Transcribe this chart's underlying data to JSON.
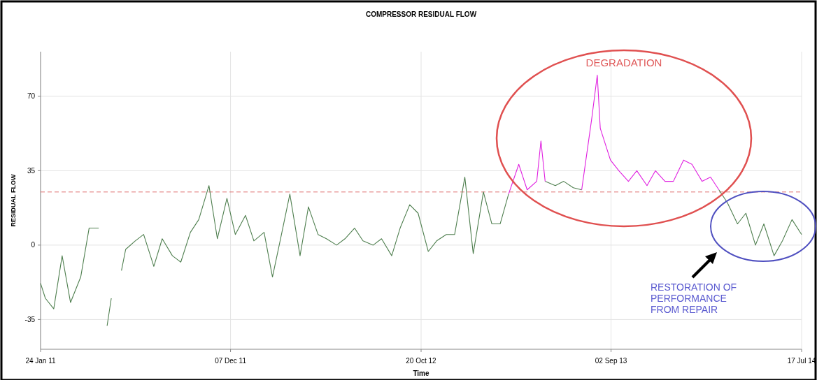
{
  "chart_data": {
    "type": "line",
    "title": "COMPRESSOR RESIDUAL FLOW",
    "xlabel": "Time",
    "ylabel": "RESIDUAL FLOW",
    "xlim": [
      "2011-01-24",
      "2014-07-17"
    ],
    "xticks": [
      {
        "value": "2011-01-24",
        "label": "24 Jan 11"
      },
      {
        "value": "2011-12-07",
        "label": "07 Dec 11"
      },
      {
        "value": "2012-10-20",
        "label": "20 Oct 12"
      },
      {
        "value": "2013-09-02",
        "label": "02 Sep 13"
      },
      {
        "value": "2014-07-17",
        "label": "17 Jul 14"
      }
    ],
    "ylim": [
      -49,
      91
    ],
    "yticks": [
      -35,
      0,
      35,
      70
    ],
    "grid": true,
    "line_style": "solid",
    "ref_lines": [
      {
        "axis": "y",
        "value": 25,
        "color": "#e07070",
        "line_style": "dashed"
      }
    ],
    "annotations": [
      "DEGRADATION",
      "RESTORATION OF PERFORMANCE FROM REPAIR"
    ],
    "series": [
      {
        "color": "#4f7f4f",
        "x": [
          "2011-01-24",
          "2011-02-01",
          "2011-02-15",
          "2011-03-01",
          "2011-03-15",
          "2011-04-01",
          "2011-04-15",
          "2011-05-01",
          "2011-05-08",
          "2011-05-15",
          "2011-05-22",
          "2011-05-29",
          "2011-06-08",
          "2011-06-15",
          "2011-07-01",
          "2011-07-15",
          "2011-08-01",
          "2011-08-15",
          "2011-09-01",
          "2011-09-15",
          "2011-10-01",
          "2011-10-15",
          "2011-11-01",
          "2011-11-15",
          "2011-12-01",
          "2011-12-15",
          "2012-01-01",
          "2012-01-15",
          "2012-02-01",
          "2012-02-15",
          "2012-03-01",
          "2012-03-15",
          "2012-04-01",
          "2012-04-15",
          "2012-05-01",
          "2012-05-15",
          "2012-06-01",
          "2012-06-15",
          "2012-07-01",
          "2012-07-15",
          "2012-08-01",
          "2012-08-15",
          "2012-09-01",
          "2012-09-15",
          "2012-10-01",
          "2012-10-15",
          "2012-11-01",
          "2012-11-15",
          "2012-12-01",
          "2012-12-15",
          "2013-01-01",
          "2013-01-15",
          "2013-02-01",
          "2013-02-15",
          "2013-03-01",
          "2013-03-15",
          "2013-04-01",
          "2013-05-15",
          "2013-06-01",
          "2013-06-15",
          "2013-07-01",
          "2013-07-15",
          "2013-08-01",
          "2014-03-01",
          "2014-03-15",
          "2014-04-01",
          "2014-04-15",
          "2014-05-01",
          "2014-05-15",
          "2014-06-01",
          "2014-06-15",
          "2014-07-01",
          "2014-07-17"
        ],
        "values": [
          -18,
          -25,
          -30,
          -5,
          -27,
          -15,
          8,
          8,
          null,
          -38,
          -25,
          null,
          -12,
          -2,
          2,
          5,
          -10,
          3,
          -5,
          -8,
          6,
          12,
          28,
          3,
          22,
          5,
          14,
          2,
          6,
          -15,
          5,
          24,
          -5,
          18,
          5,
          3,
          0,
          3,
          8,
          2,
          0,
          3,
          -5,
          8,
          19,
          15,
          -3,
          2,
          5,
          5,
          32,
          -4,
          25,
          10,
          10,
          24,
          null,
          30,
          28,
          30,
          27,
          26,
          null,
          26,
          20,
          10,
          15,
          0,
          10,
          -5,
          2,
          12,
          5
        ]
      },
      {
        "color": "#e020e0",
        "x": [
          "2013-03-15",
          "2013-04-01",
          "2013-04-15",
          "2013-05-01",
          "2013-05-08",
          "2013-05-15",
          "2013-06-01",
          "2013-07-15",
          "2013-08-01",
          "2013-08-10",
          "2013-08-15",
          "2013-09-01",
          "2013-09-15",
          "2013-10-01",
          "2013-10-15",
          "2013-11-01",
          "2013-11-15",
          "2013-12-01",
          "2013-12-15",
          "2014-01-01",
          "2014-01-15",
          "2014-02-01",
          "2014-02-15",
          "2014-03-01"
        ],
        "values": [
          24,
          38,
          26,
          30,
          49,
          30,
          null,
          26,
          60,
          80,
          55,
          40,
          35,
          30,
          35,
          28,
          35,
          30,
          30,
          40,
          38,
          30,
          32,
          26
        ]
      }
    ]
  }
}
